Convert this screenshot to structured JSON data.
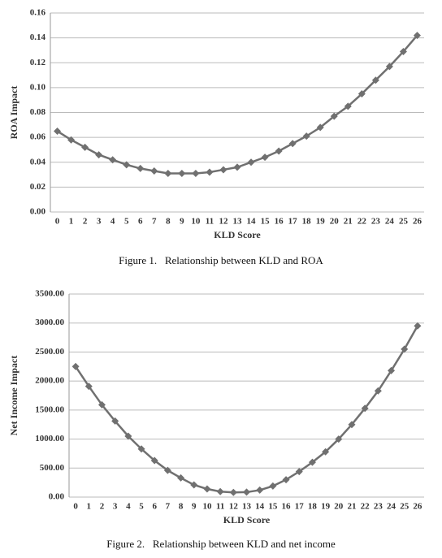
{
  "chart_data": [
    {
      "type": "line",
      "caption": "Figure 1.   Relationship between KLD and ROA",
      "x_label": "KLD Score",
      "y_label": "ROA Impact",
      "color": "#707070",
      "grid": true,
      "categories": [
        0,
        1,
        2,
        3,
        4,
        5,
        6,
        7,
        8,
        9,
        10,
        11,
        12,
        13,
        14,
        15,
        16,
        17,
        18,
        19,
        20,
        21,
        22,
        23,
        24,
        25,
        26
      ],
      "values": [
        0.065,
        0.058,
        0.052,
        0.046,
        0.042,
        0.038,
        0.035,
        0.033,
        0.031,
        0.031,
        0.031,
        0.032,
        0.034,
        0.036,
        0.04,
        0.044,
        0.049,
        0.055,
        0.061,
        0.068,
        0.077,
        0.085,
        0.095,
        0.106,
        0.117,
        0.129,
        0.142
      ],
      "ylim": [
        0,
        0.16
      ],
      "yticks": [
        {
          "value": 0,
          "label": "0.00"
        },
        {
          "value": 0.02,
          "label": "0.02"
        },
        {
          "value": 0.04,
          "label": "0.04"
        },
        {
          "value": 0.06,
          "label": "0.06"
        },
        {
          "value": 0.08,
          "label": "0.08"
        },
        {
          "value": 0.1,
          "label": "0.10"
        },
        {
          "value": 0.12,
          "label": "0.12"
        },
        {
          "value": 0.14,
          "label": "0.14"
        },
        {
          "value": 0.16,
          "label": "0.16"
        }
      ]
    },
    {
      "type": "line",
      "caption": "Figure 2.   Relationship between KLD and net income",
      "x_label": "KLD Score",
      "y_label": "Net Income Impact",
      "color": "#707070",
      "grid": true,
      "categories": [
        0,
        1,
        2,
        3,
        4,
        5,
        6,
        7,
        8,
        9,
        10,
        11,
        12,
        13,
        14,
        15,
        16,
        17,
        18,
        19,
        20,
        21,
        22,
        23,
        24,
        25,
        26
      ],
      "values": [
        2250,
        1910,
        1590,
        1310,
        1050,
        830,
        630,
        460,
        330,
        210,
        140,
        95,
        80,
        85,
        120,
        190,
        300,
        440,
        600,
        780,
        1000,
        1250,
        1530,
        1830,
        2180,
        2550,
        2950
      ],
      "ylim": [
        0,
        3500
      ],
      "yticks": [
        {
          "value": 0,
          "label": "0.00"
        },
        {
          "value": 500,
          "label": "500.00"
        },
        {
          "value": 1000,
          "label": "1000.00"
        },
        {
          "value": 1500,
          "label": "1500.00"
        },
        {
          "value": 2000,
          "label": "2000.00"
        },
        {
          "value": 2500,
          "label": "2500.00"
        },
        {
          "value": 3000,
          "label": "3000.00"
        },
        {
          "value": 3500,
          "label": "3500.00"
        }
      ]
    }
  ]
}
